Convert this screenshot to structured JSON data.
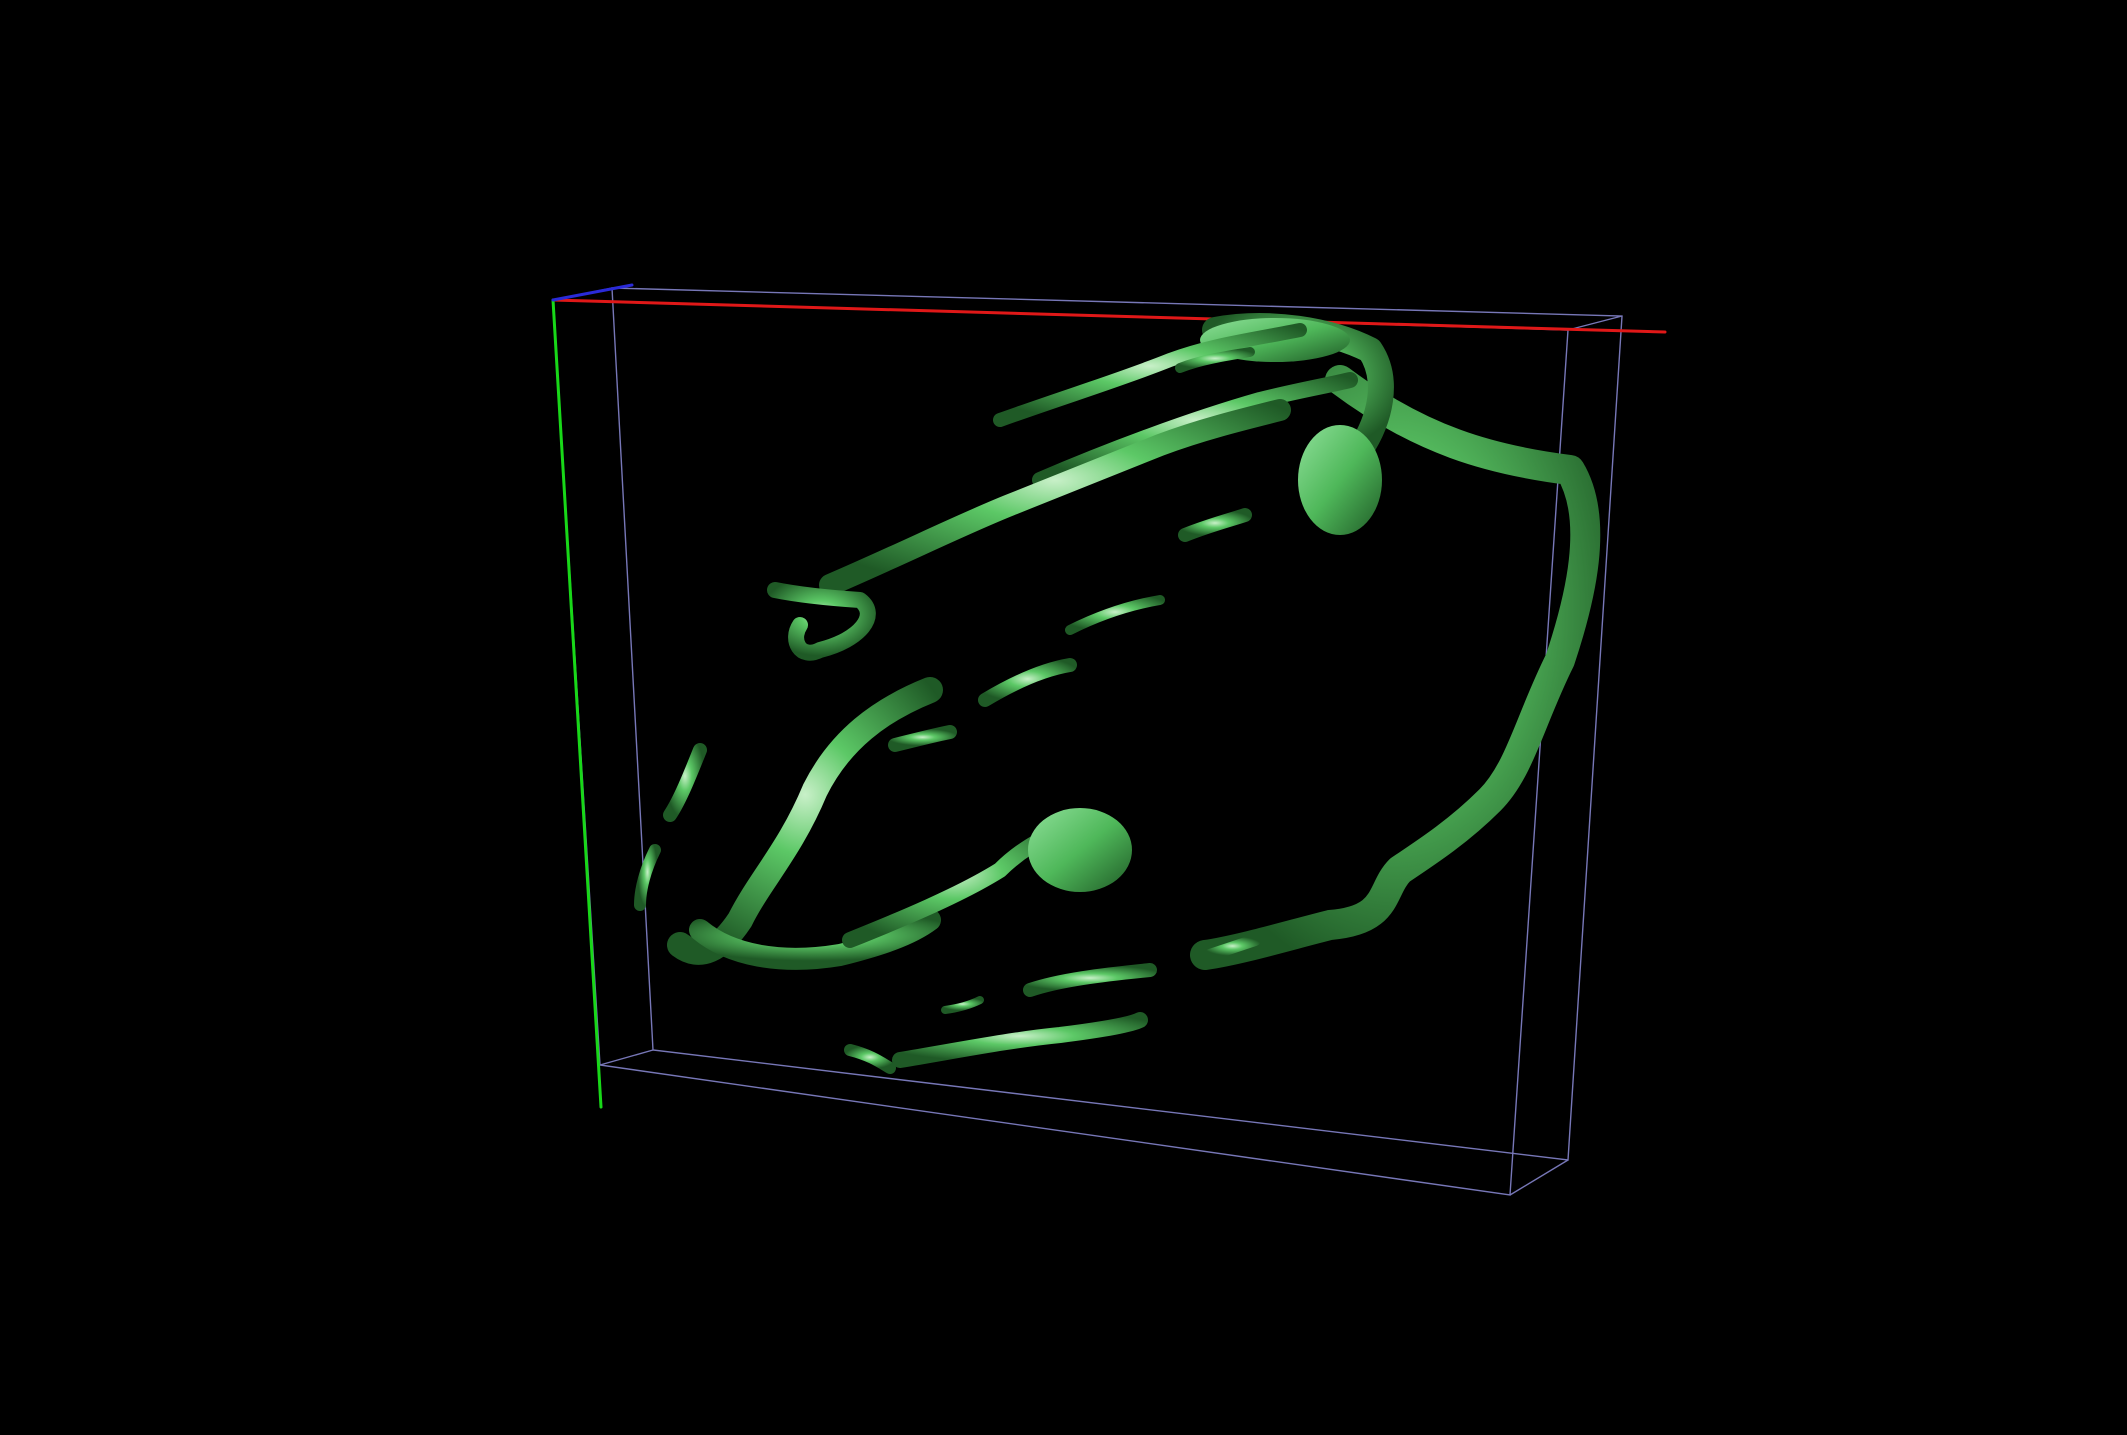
{
  "scene": {
    "background_color": "#000000",
    "surface_color": "#4fb85a",
    "surface_highlight_color": "#c8f0c8",
    "surface_shadow_color": "#1f5a26",
    "bounding_box_color": "#8c8cd8",
    "axes": {
      "x_color": "#e01818",
      "y_color": "#18d818",
      "z_color": "#2a2ad8"
    }
  }
}
